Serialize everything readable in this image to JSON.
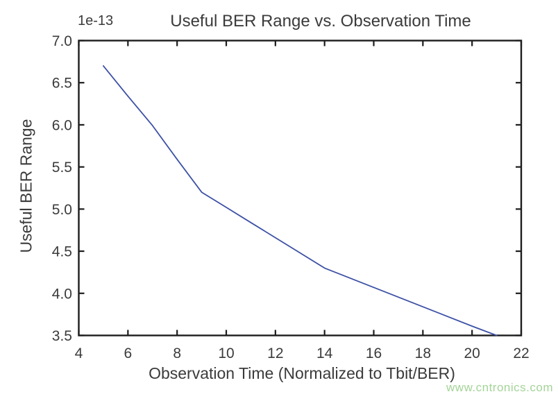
{
  "chart_data": {
    "type": "line",
    "title": "Useful BER Range vs. Observation Time",
    "xlabel": "Observation Time (Normalized to Tbit/BER)",
    "ylabel": "Useful BER Range",
    "y_offset_text": "1e-13",
    "x": [
      5,
      6,
      7,
      8,
      9,
      10,
      11,
      12,
      13,
      14,
      16,
      18,
      20,
      21
    ],
    "y": [
      6.7,
      6.34,
      5.99,
      5.59,
      5.2,
      5.02,
      4.84,
      4.66,
      4.48,
      4.3,
      4.07,
      3.84,
      3.61,
      3.5
    ],
    "xlim": [
      4,
      22
    ],
    "ylim": [
      3.5,
      7.0
    ],
    "xticks": [
      4,
      6,
      8,
      10,
      12,
      14,
      16,
      18,
      20,
      22
    ],
    "xtick_labels": [
      "4",
      "6",
      "8",
      "10",
      "12",
      "14",
      "16",
      "18",
      "20",
      "22"
    ],
    "yticks": [
      3.5,
      4.0,
      4.5,
      5.0,
      5.5,
      6.0,
      6.5,
      7.0
    ],
    "ytick_labels": [
      "3.5",
      "4.0",
      "4.5",
      "5.0",
      "5.5",
      "6.0",
      "6.5",
      "7.0"
    ],
    "grid": false,
    "legend": null,
    "tick_direction": "in",
    "colors": {
      "line": "#3c50a5",
      "axis": "#1c1c1c",
      "text": "#3b3b3b"
    }
  },
  "watermark": {
    "text": "www.cntronics.com",
    "color": "#a4d498"
  }
}
